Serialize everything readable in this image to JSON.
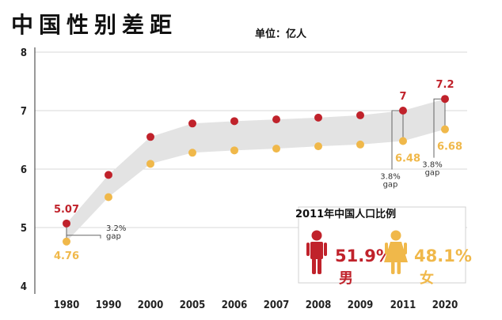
{
  "title": "中国性别差距",
  "unit": "单位：亿人",
  "colors": {
    "male": "#c0222b",
    "female": "#f0b84a",
    "band": "#e3e3e3",
    "grid": "#d9d9d9"
  },
  "chart_data": {
    "type": "line",
    "title": "中国性别差距",
    "categories": [
      "1980",
      "1990",
      "2000",
      "2005",
      "2006",
      "2007",
      "2008",
      "2009",
      "2011",
      "2020"
    ],
    "yticks": [
      "4",
      "5",
      "6",
      "7",
      "8"
    ],
    "ylim": [
      4,
      8
    ],
    "series": [
      {
        "values": [
          5.07,
          5.9,
          6.55,
          6.78,
          6.82,
          6.85,
          6.88,
          6.92,
          7.0,
          7.2
        ]
      },
      {
        "values": [
          4.76,
          5.52,
          6.09,
          6.28,
          6.32,
          6.35,
          6.39,
          6.42,
          6.48,
          6.68
        ]
      }
    ],
    "value_labels": [
      {
        "index": 0,
        "male": "5.07",
        "female": "4.76"
      },
      {
        "index": 8,
        "male": "7",
        "female": "6.48"
      },
      {
        "index": 9,
        "male": "7.2",
        "female": "6.68"
      }
    ],
    "gap_notes": [
      {
        "index": 0,
        "pct": "3.2%",
        "word": "gap"
      },
      {
        "index": 8,
        "pct": "3.8%",
        "word": "gap"
      },
      {
        "index": 9,
        "pct": "3.8%",
        "word": "gap"
      }
    ],
    "grid": true
  },
  "inset": {
    "title": "2011年中国人口比例",
    "male_pct": "51.9%",
    "male_label": "男",
    "female_pct": "48.1%",
    "female_label": "女"
  }
}
